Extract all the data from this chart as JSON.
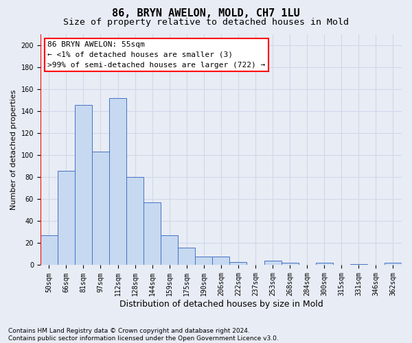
{
  "title": "86, BRYN AWELON, MOLD, CH7 1LU",
  "subtitle": "Size of property relative to detached houses in Mold",
  "xlabel": "Distribution of detached houses by size in Mold",
  "ylabel": "Number of detached properties",
  "categories": [
    "50sqm",
    "66sqm",
    "81sqm",
    "97sqm",
    "112sqm",
    "128sqm",
    "144sqm",
    "159sqm",
    "175sqm",
    "190sqm",
    "206sqm",
    "222sqm",
    "237sqm",
    "253sqm",
    "268sqm",
    "284sqm",
    "300sqm",
    "315sqm",
    "331sqm",
    "346sqm",
    "362sqm"
  ],
  "values": [
    27,
    86,
    146,
    103,
    152,
    80,
    57,
    27,
    16,
    8,
    8,
    3,
    0,
    4,
    2,
    0,
    2,
    0,
    1,
    0,
    2
  ],
  "bar_color": "#c6d9f0",
  "bar_edge_color": "#4472c4",
  "ylim": [
    0,
    210
  ],
  "yticks": [
    0,
    20,
    40,
    60,
    80,
    100,
    120,
    140,
    160,
    180,
    200
  ],
  "annotation_box_text": "86 BRYN AWELON: 55sqm\n← <1% of detached houses are smaller (3)\n>99% of semi-detached houses are larger (722) →",
  "annotation_box_color": "white",
  "annotation_box_edge_color": "red",
  "grid_color": "#d0d8e8",
  "background_color": "#e8ecf5",
  "footer_text": "Contains HM Land Registry data © Crown copyright and database right 2024.\nContains public sector information licensed under the Open Government Licence v3.0.",
  "title_fontsize": 11,
  "subtitle_fontsize": 9.5,
  "xlabel_fontsize": 9,
  "ylabel_fontsize": 8,
  "tick_fontsize": 7,
  "annotation_fontsize": 8,
  "footer_fontsize": 6.5
}
